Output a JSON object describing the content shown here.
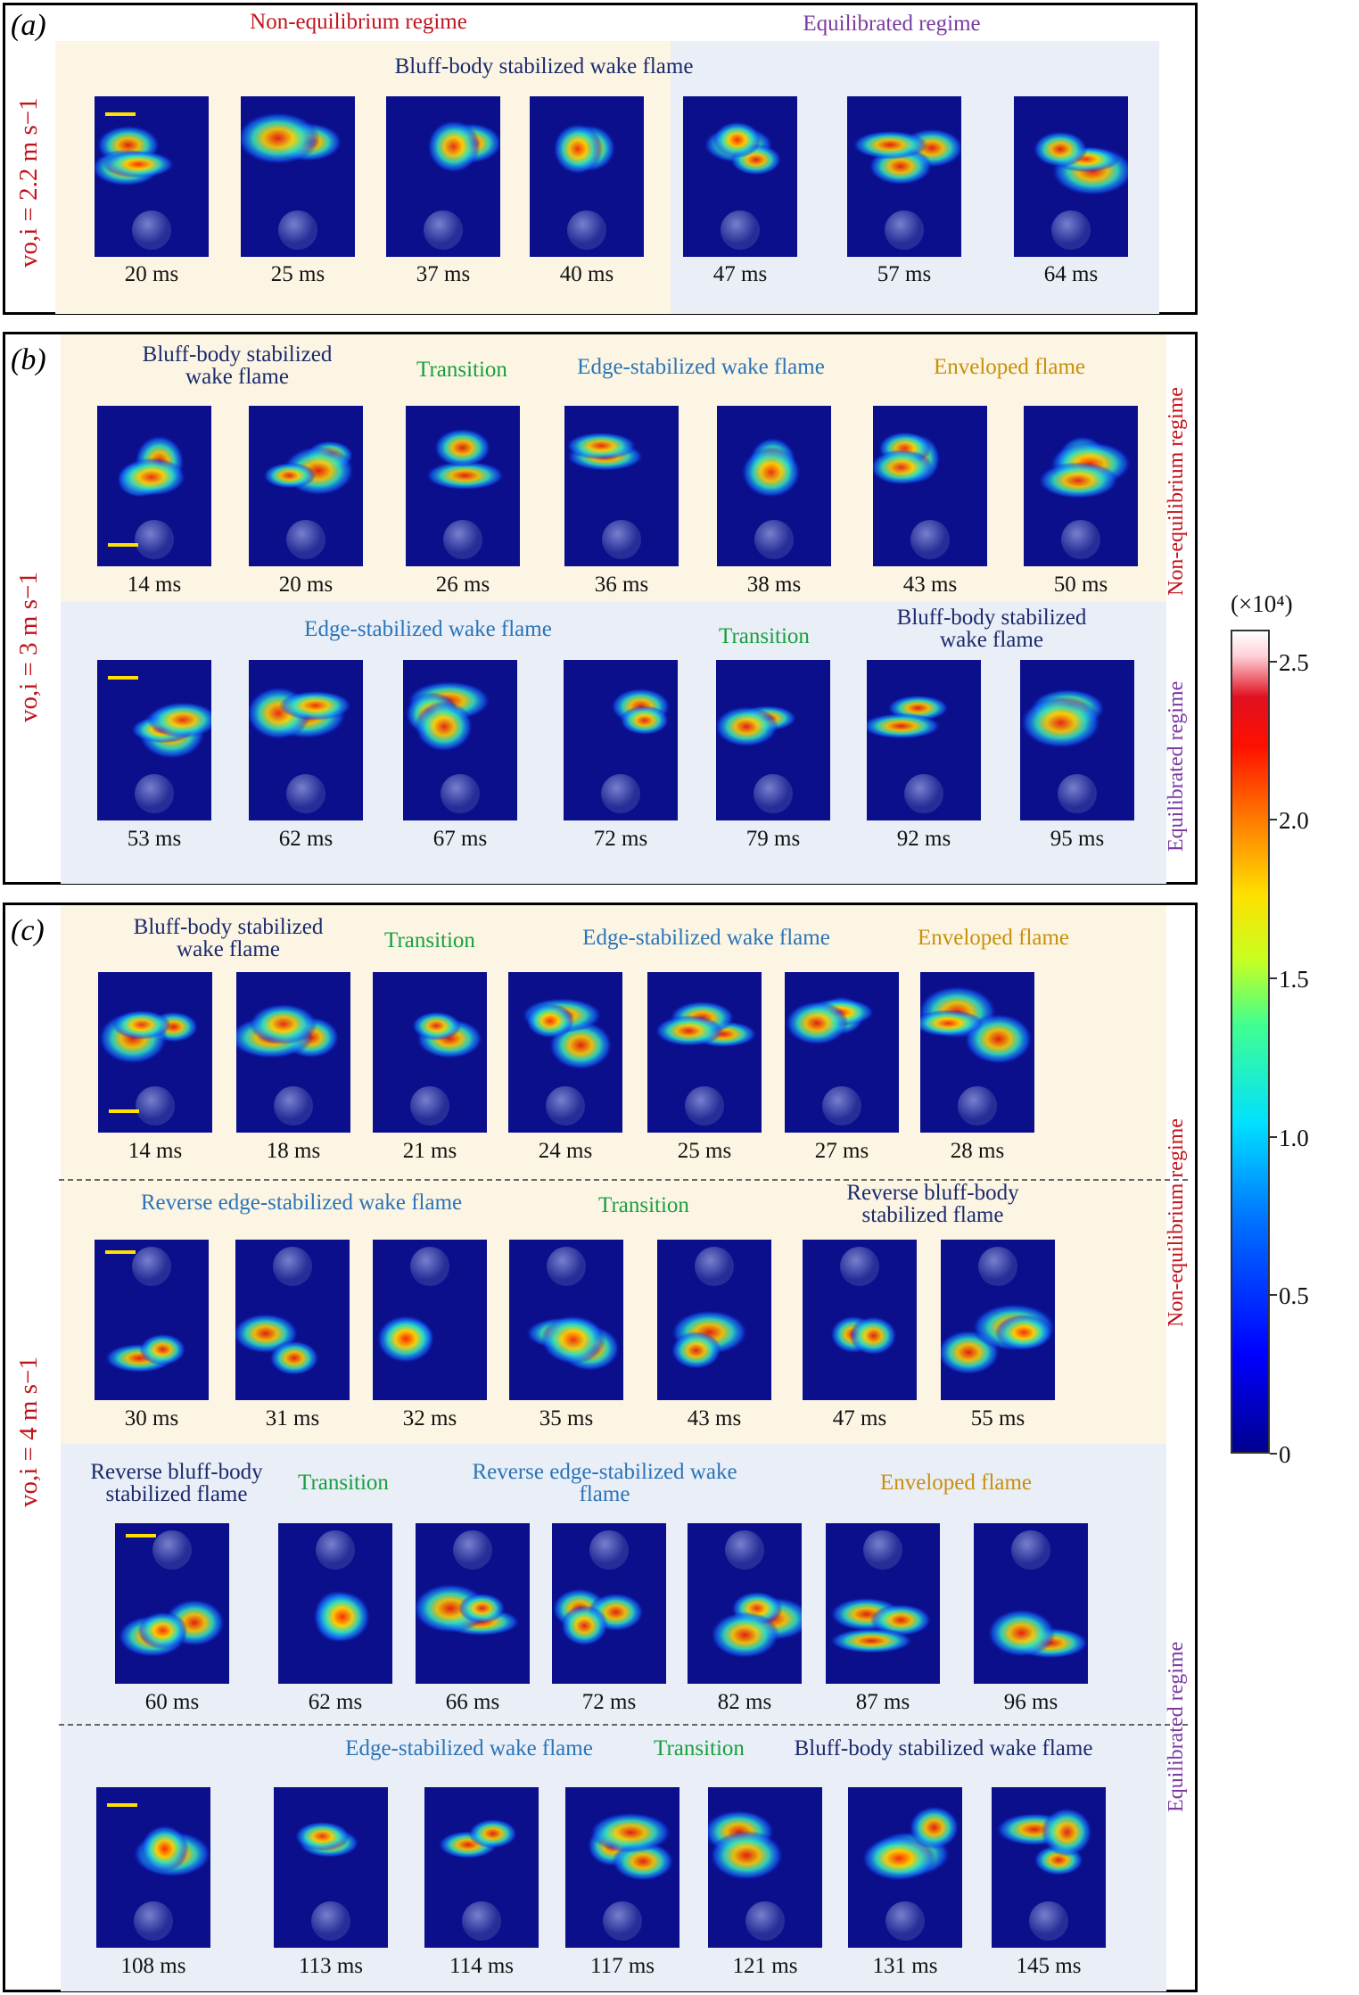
{
  "colors": {
    "blue": "#1a2a6c",
    "green": "#18a040",
    "teal": "#2a74b8",
    "gold": "#c8900a",
    "red": "#c0141c",
    "purple": "#7a3aa0",
    "cream": "#fcf5e3",
    "lightblue": "#e9eef7"
  },
  "panel_a": {
    "label": "(a)",
    "regime_left": "Non-equilibrium regime",
    "regime_right": "Equilibrated regime",
    "velocity": "vo,i = 2.2 m s−1",
    "region_title": "Bluff-body stabilized wake flame",
    "times": [
      "20 ms",
      "25 ms",
      "37 ms",
      "40 ms",
      "47 ms",
      "57 ms",
      "64 ms"
    ]
  },
  "panel_b": {
    "label": "(b)",
    "velocity": "vo,i = 3 m s−1",
    "side_top": "Non-equilibrium regime",
    "side_bottom": "Equilibrated regime",
    "top_regions": [
      "Bluff-body stabilized wake flame",
      "Transition",
      "Edge-stabilized wake flame",
      "Enveloped flame"
    ],
    "top_times": [
      "14 ms",
      "20 ms",
      "26 ms",
      "36 ms",
      "38 ms",
      "43 ms",
      "50 ms"
    ],
    "bottom_regions": [
      "Edge-stabilized wake flame",
      "Transition",
      "Bluff-body stabilized wake flame"
    ],
    "bottom_times": [
      "53 ms",
      "62 ms",
      "67 ms",
      "72 ms",
      "79 ms",
      "92 ms",
      "95 ms"
    ]
  },
  "panel_c": {
    "label": "(c)",
    "velocity": "vo,i = 4 m s−1",
    "side_top": "Non-equilibrium regime",
    "side_bottom": "Equilibrated regime",
    "row1_regions": [
      "Bluff-body stabilized wake flame",
      "Transition",
      "Edge-stabilized wake flame",
      "Enveloped flame"
    ],
    "row1_times": [
      "14 ms",
      "18 ms",
      "21 ms",
      "24 ms",
      "25 ms",
      "27 ms",
      "28 ms"
    ],
    "row2_regions": [
      "Reverse edge-stabilized wake flame",
      "Transition",
      "Reverse bluff-body stabilized flame"
    ],
    "row2_times": [
      "30 ms",
      "31 ms",
      "32 ms",
      "35 ms",
      "43 ms",
      "47 ms",
      "55 ms"
    ],
    "row3_regions": [
      "Reverse bluff-body stabilized flame",
      "Transition",
      "Reverse edge-stabilized wake flame",
      "Enveloped flame"
    ],
    "row3_times": [
      "60 ms",
      "62 ms",
      "66 ms",
      "72 ms",
      "82 ms",
      "87 ms",
      "96 ms"
    ],
    "row4_regions": [
      "Edge-stabilized wake flame",
      "Transition",
      "Bluff-body stabilized wake flame"
    ],
    "row4_times": [
      "108 ms",
      "113 ms",
      "114 ms",
      "117 ms",
      "121 ms",
      "131 ms",
      "145 ms"
    ]
  },
  "colorbar": {
    "multiplier": "(×10⁴)",
    "ticks": [
      "2.5",
      "2.0",
      "1.5",
      "1.0",
      "0.5",
      "0"
    ],
    "tick_values": [
      2.5,
      2.0,
      1.5,
      1.0,
      0.5,
      0
    ],
    "max": 2.6
  }
}
